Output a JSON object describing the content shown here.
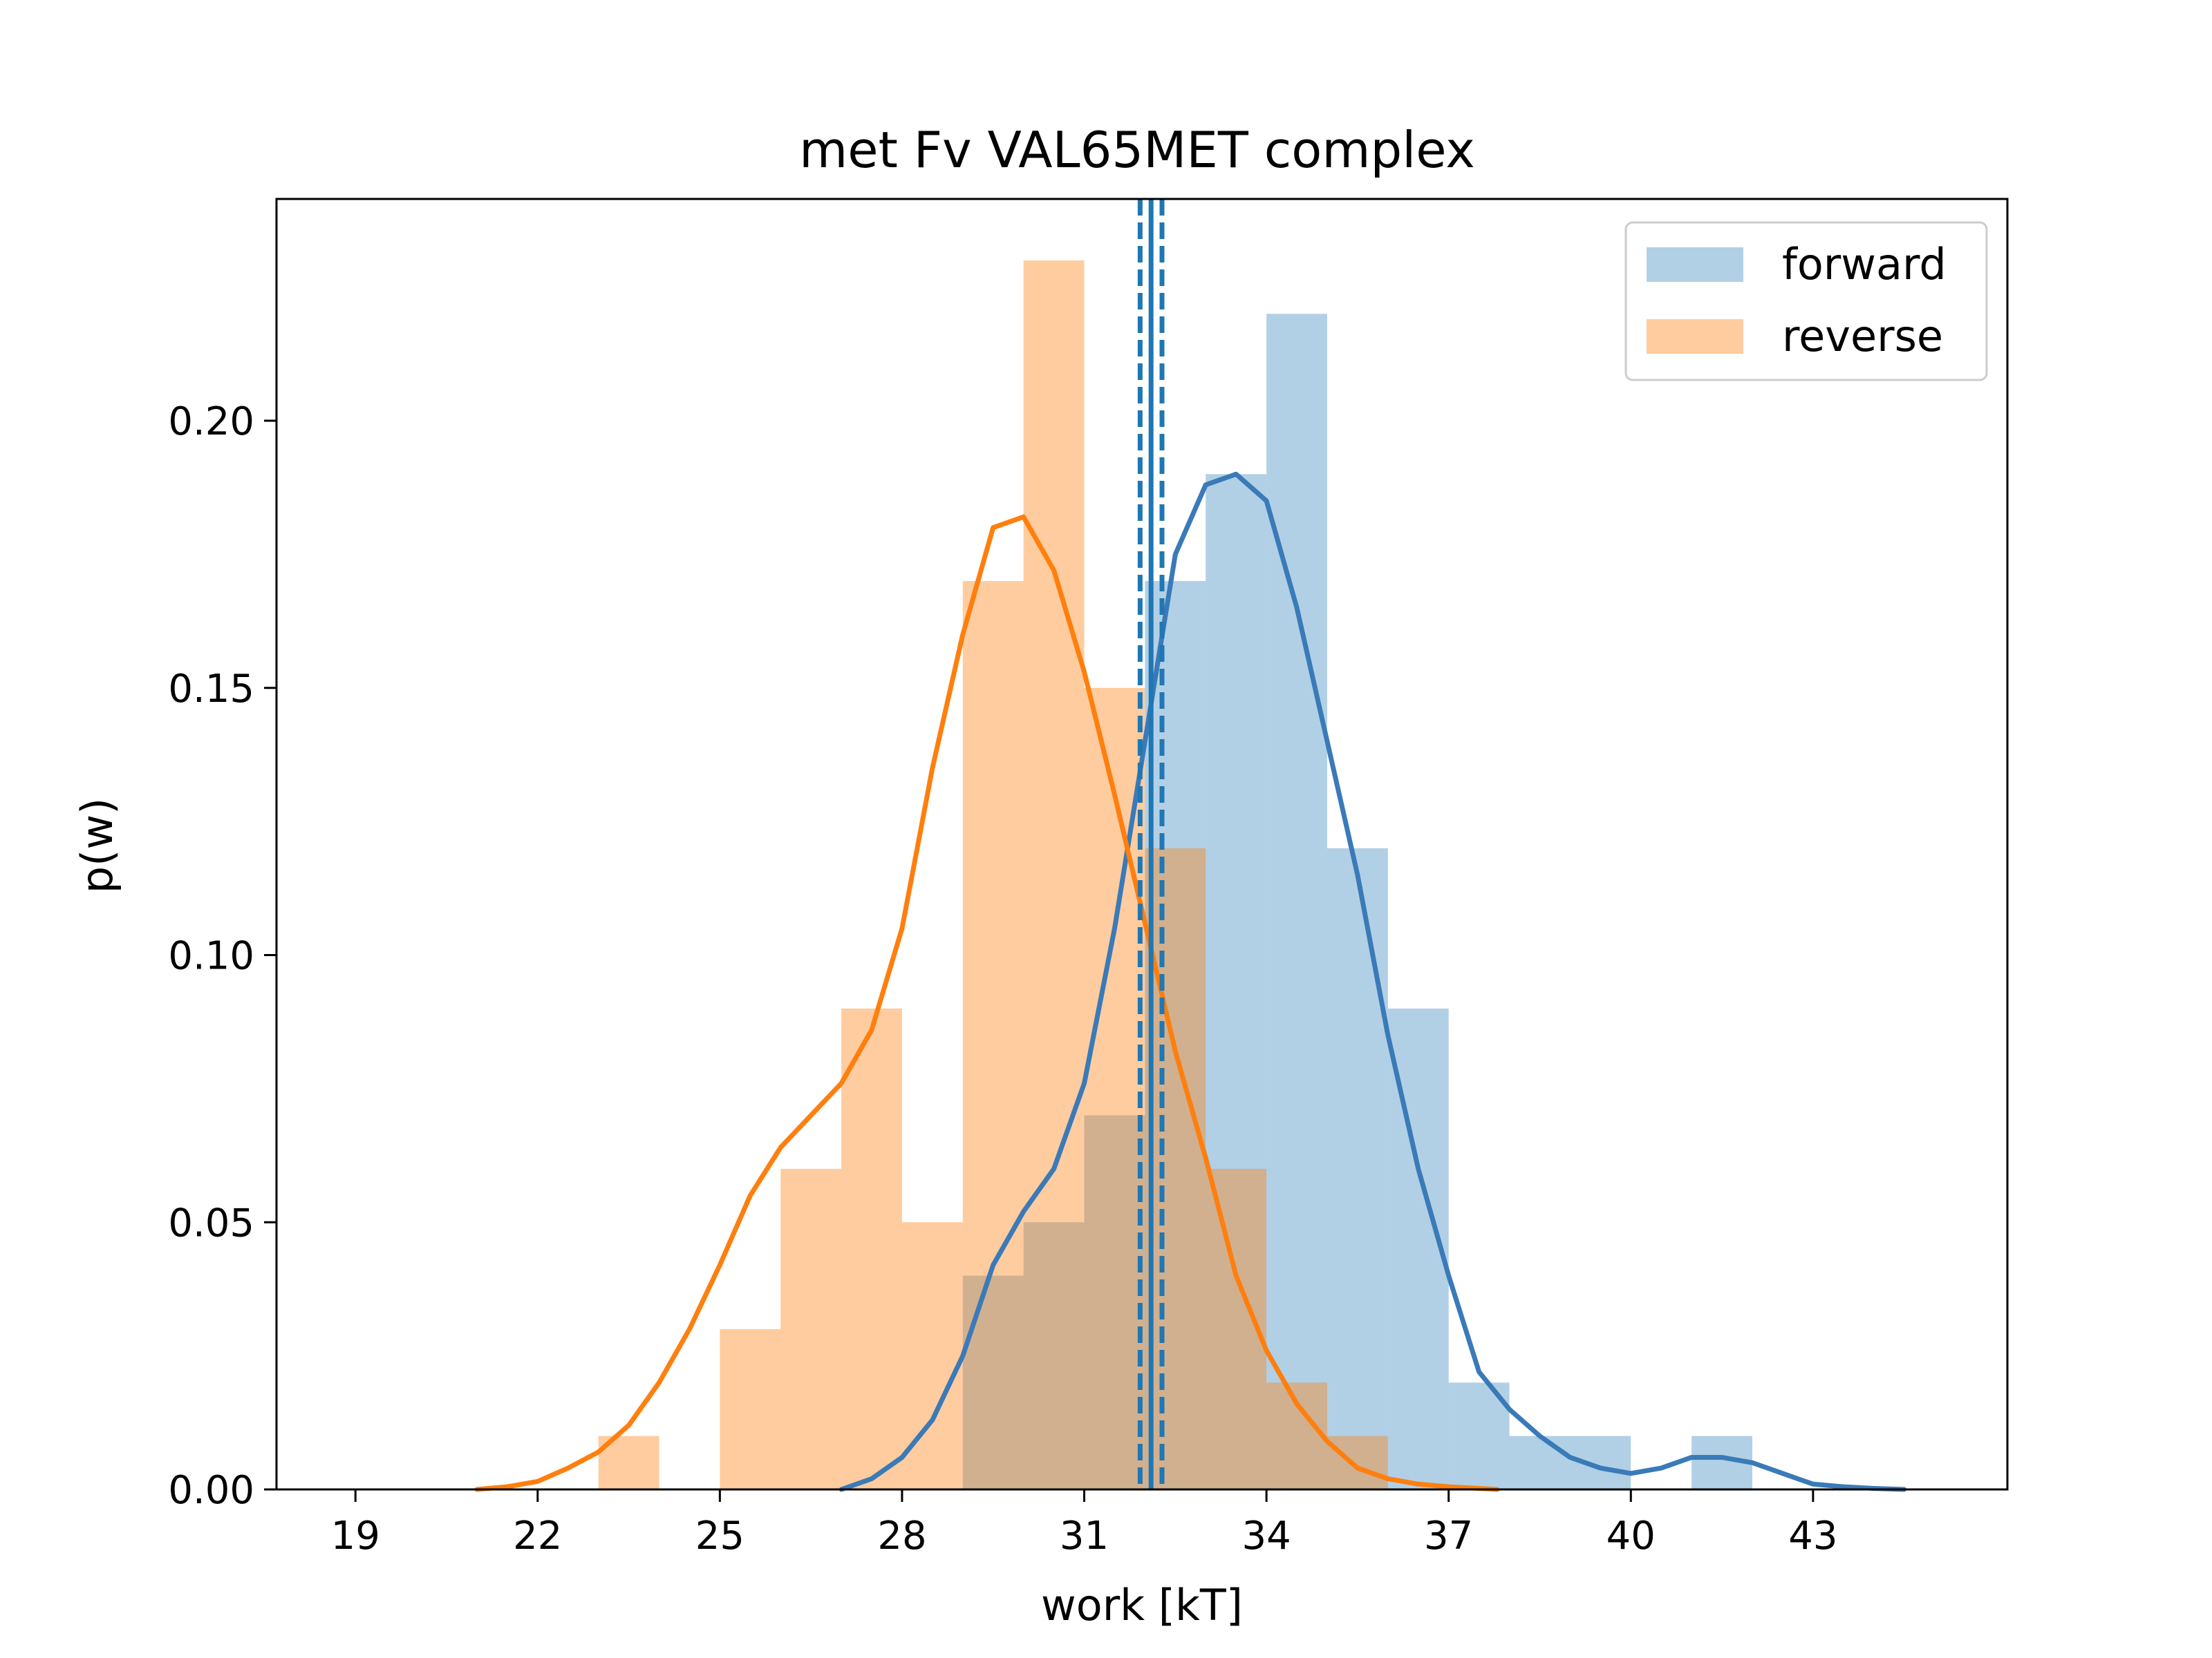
{
  "chart_data": {
    "type": "histogram",
    "title": "met Fv VAL65MET complex",
    "xlabel": "work [kT]",
    "ylabel": "p(w)",
    "xlim": [
      17.7,
      46.2
    ],
    "ylim": [
      0,
      0.2415
    ],
    "xticks": [
      19,
      22,
      25,
      28,
      31,
      34,
      37,
      40,
      43
    ],
    "yticks": [
      0.0,
      0.05,
      0.1,
      0.15,
      0.2
    ],
    "ytick_labels": [
      "0.00",
      "0.05",
      "0.10",
      "0.15",
      "0.20"
    ],
    "grid": false,
    "legend_position": "top-right",
    "bin_width": 1,
    "series": [
      {
        "name": "forward",
        "color": "#1f77b4",
        "kde_color": "#3a7ab8",
        "bins_start": [
          29,
          30,
          31,
          32,
          33,
          34,
          35,
          36,
          37,
          38,
          39,
          40,
          41
        ],
        "density": [
          0.04,
          0.05,
          0.07,
          0.17,
          0.19,
          0.22,
          0.12,
          0.09,
          0.02,
          0.01,
          0.01,
          0.0,
          0.01
        ],
        "kde_x": [
          27.0,
          27.5,
          28.0,
          28.5,
          29.0,
          29.5,
          30.0,
          30.5,
          31.0,
          31.5,
          32.0,
          32.5,
          33.0,
          33.5,
          34.0,
          34.5,
          35.0,
          35.5,
          36.0,
          36.5,
          37.0,
          37.5,
          38.0,
          38.5,
          39.0,
          39.5,
          40.0,
          40.5,
          41.0,
          41.5,
          42.0,
          42.5,
          43.0,
          43.5,
          44.0,
          44.5
        ],
        "kde_y": [
          0.0,
          0.002,
          0.006,
          0.013,
          0.025,
          0.042,
          0.052,
          0.06,
          0.076,
          0.105,
          0.14,
          0.175,
          0.188,
          0.19,
          0.185,
          0.165,
          0.14,
          0.115,
          0.085,
          0.06,
          0.04,
          0.022,
          0.015,
          0.01,
          0.006,
          0.004,
          0.003,
          0.004,
          0.006,
          0.006,
          0.005,
          0.003,
          0.001,
          0.0005,
          0.0002,
          0.0
        ]
      },
      {
        "name": "reverse",
        "color": "#ff7f0e",
        "kde_color": "#ff7f0e",
        "bins_start": [
          23,
          25,
          26,
          27,
          28,
          29,
          30,
          31,
          32,
          33,
          34,
          35
        ],
        "density": [
          0.01,
          0.03,
          0.06,
          0.09,
          0.05,
          0.17,
          0.23,
          0.15,
          0.12,
          0.06,
          0.02,
          0.01
        ],
        "kde_x": [
          21.0,
          21.5,
          22.0,
          22.5,
          23.0,
          23.5,
          24.0,
          24.5,
          25.0,
          25.5,
          26.0,
          26.5,
          27.0,
          27.5,
          28.0,
          28.5,
          29.0,
          29.5,
          30.0,
          30.5,
          31.0,
          31.5,
          32.0,
          32.5,
          33.0,
          33.5,
          34.0,
          34.5,
          35.0,
          35.5,
          36.0,
          36.5,
          37.0,
          37.5,
          37.8
        ],
        "kde_y": [
          0.0,
          0.0005,
          0.0015,
          0.004,
          0.007,
          0.012,
          0.02,
          0.03,
          0.042,
          0.055,
          0.064,
          0.07,
          0.076,
          0.086,
          0.105,
          0.135,
          0.16,
          0.18,
          0.182,
          0.172,
          0.153,
          0.13,
          0.106,
          0.082,
          0.062,
          0.04,
          0.026,
          0.016,
          0.009,
          0.004,
          0.002,
          0.001,
          0.0005,
          0.0002,
          0.0
        ]
      }
    ],
    "vertical_lines": [
      {
        "x": 32.1,
        "style": "solid",
        "color": "#1f77b4"
      },
      {
        "x": 31.92,
        "style": "dashed",
        "color": "#1f77b4"
      },
      {
        "x": 32.28,
        "style": "dashed",
        "color": "#1f77b4"
      }
    ]
  }
}
